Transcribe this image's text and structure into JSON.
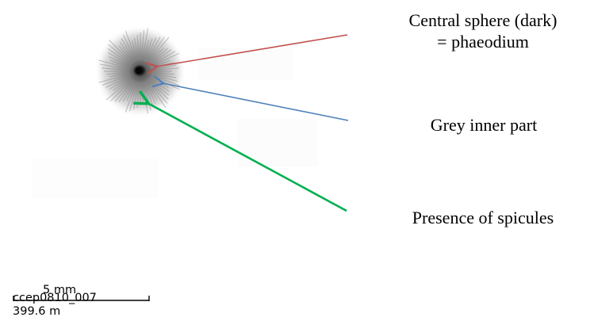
{
  "annotations": {
    "central": {
      "line1": "Central sphere (dark)",
      "line2": "= phaeodium",
      "arrow_color": "#c0504d"
    },
    "grey_inner": {
      "label": "Grey inner part",
      "arrow_color": "#4f81bd"
    },
    "spicules": {
      "label": "Presence of spicules",
      "arrow_color": "#00b050"
    }
  },
  "scale_bar": {
    "label": "5 mm",
    "sample_id": "ccep0810_007",
    "depth": "399.6 m"
  },
  "specimen": {
    "icon": "phaeodarian-radiolarian-image"
  }
}
